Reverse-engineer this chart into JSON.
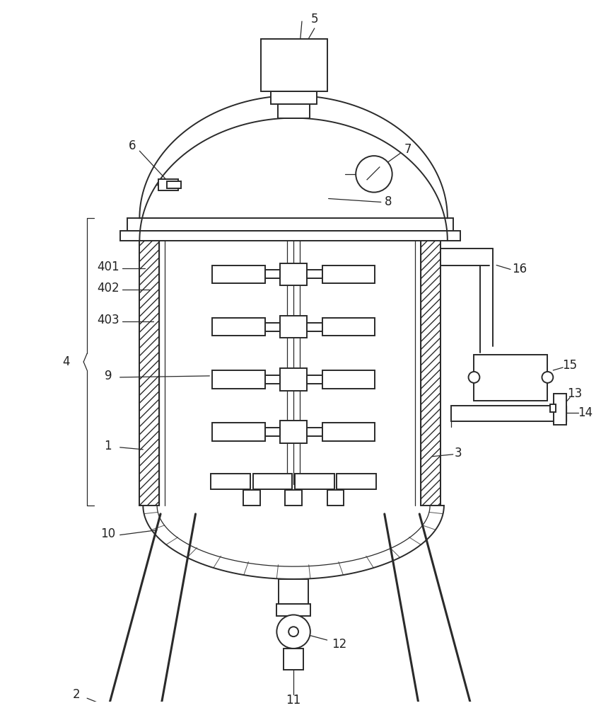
{
  "bg_color": "#ffffff",
  "line_color": "#2a2a2a",
  "label_color": "#222222",
  "fig_width": 8.5,
  "fig_height": 10.0
}
